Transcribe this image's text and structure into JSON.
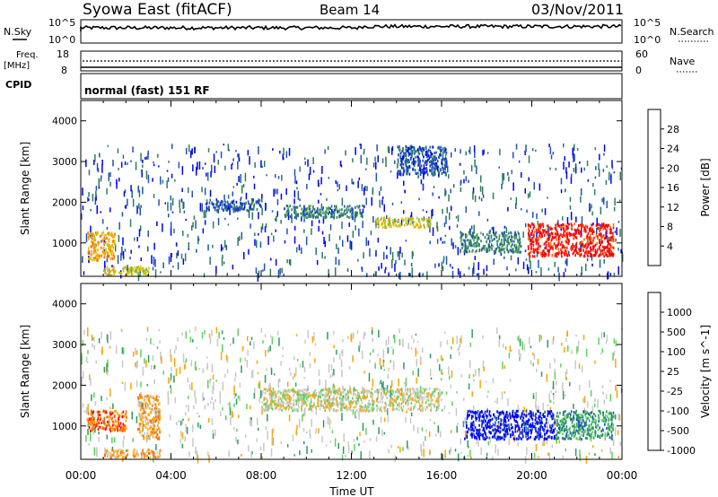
{
  "header": {
    "station": "Syowa East (fitACF)",
    "beam": "Beam 14",
    "date": "03/Nov/2011"
  },
  "strips": {
    "noise_sky_label": "N.Sky",
    "noise_search_label": "N.Search",
    "noise_left_ticks": [
      "10^5",
      "10^0"
    ],
    "noise_right_ticks": [
      "10^5",
      "10^0"
    ],
    "freq_label_1": "Freq.",
    "freq_label_2": "[MHz]",
    "freq_ticks": [
      "18",
      "8"
    ],
    "nave_label": "Nave",
    "nave_ticks": [
      "60",
      "0"
    ],
    "cpid_label": "CPID",
    "cpid_value": "normal (fast) 151 RF"
  },
  "chart_data": [
    {
      "type": "heatmap",
      "title": "",
      "ylabel": "Slant Range [km]",
      "xlabel": "",
      "yticks": [
        "1000",
        "2000",
        "3000",
        "4000"
      ],
      "ylim": [
        180,
        4500
      ],
      "xlim_hours": [
        0,
        24
      ],
      "colorbar": {
        "label": "Power [dB]",
        "ticks": [
          "28",
          "24",
          "20",
          "16",
          "12",
          "8",
          "4"
        ],
        "colors": [
          "#0000ff",
          "#1f55b5",
          "#2c7d5e",
          "#5fb35c",
          "#c8c800",
          "#ffa500",
          "#ff6a00",
          "#ff0000"
        ]
      },
      "regions": [
        {
          "t0": 19.8,
          "t1": 23.6,
          "r0": 700,
          "r1": 1500,
          "level": 7
        },
        {
          "t0": 0.3,
          "t1": 1.5,
          "r0": 600,
          "r1": 1300,
          "level": 5
        },
        {
          "t0": 13.0,
          "t1": 15.5,
          "r0": 1400,
          "r1": 1650,
          "level": 4
        },
        {
          "t0": 9.0,
          "t1": 12.5,
          "r0": 1650,
          "r1": 1950,
          "level": 2
        },
        {
          "t0": 5.5,
          "t1": 8.0,
          "r0": 1800,
          "r1": 2100,
          "level": 1
        },
        {
          "t0": 14.0,
          "t1": 16.2,
          "r0": 2700,
          "r1": 3400,
          "level": 1
        },
        {
          "t0": 16.8,
          "t1": 19.5,
          "r0": 800,
          "r1": 1300,
          "level": 2
        },
        {
          "t0": 1.0,
          "t1": 3.0,
          "r0": 230,
          "r1": 450,
          "level": 4
        }
      ]
    },
    {
      "type": "heatmap",
      "title": "",
      "ylabel": "Slant Range [km]",
      "xlabel": "Time UT",
      "xticks": [
        "00:00",
        "04:00",
        "08:00",
        "12:00",
        "16:00",
        "20:00",
        "00:00"
      ],
      "yticks": [
        "1000",
        "2000",
        "3000",
        "4000"
      ],
      "ylim": [
        180,
        4500
      ],
      "xlim_hours": [
        0,
        24
      ],
      "colorbar": {
        "label": "Velocity [m s^-1]",
        "ticks": [
          "1000",
          "500",
          "100",
          "25",
          "-25",
          "-100",
          "-500",
          "-1000"
        ],
        "colors": [
          "#ff0000",
          "#ff6a00",
          "#ffa500",
          "#c8c8c8",
          "#5fd35c",
          "#2c9d5e",
          "#1f55b5",
          "#0000ff"
        ]
      },
      "regions": [
        {
          "t0": 17.0,
          "t1": 21.0,
          "r0": 700,
          "r1": 1400,
          "level": 7
        },
        {
          "t0": 21.0,
          "t1": 23.6,
          "r0": 700,
          "r1": 1400,
          "level": 5
        },
        {
          "t0": 0.3,
          "t1": 2.0,
          "r0": 900,
          "r1": 1400,
          "level": 1
        },
        {
          "t0": 2.5,
          "t1": 3.5,
          "r0": 700,
          "r1": 1800,
          "level": 2
        },
        {
          "t0": 8.0,
          "t1": 16.0,
          "r0": 1400,
          "r1": 1950,
          "level": 3
        },
        {
          "t0": 1.0,
          "t1": 3.5,
          "r0": 250,
          "r1": 450,
          "level": 2
        }
      ]
    }
  ]
}
